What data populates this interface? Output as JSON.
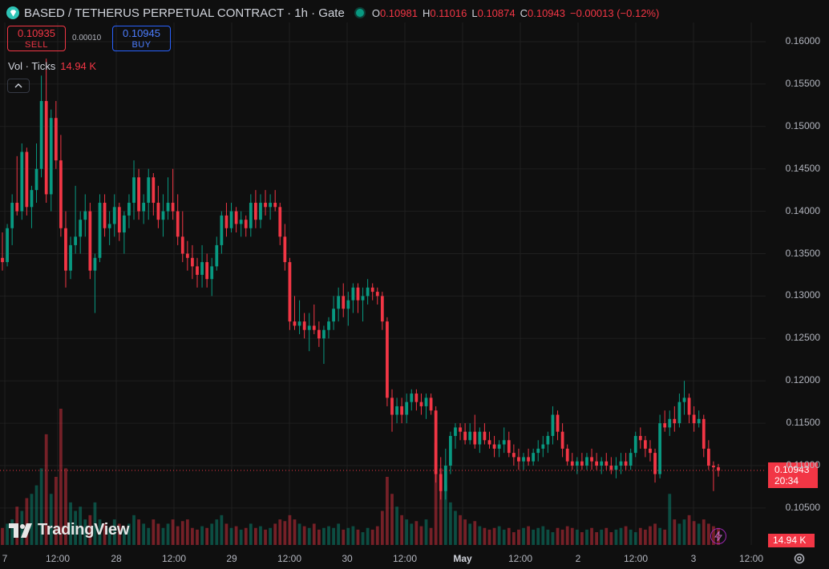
{
  "header": {
    "title": "BASED / TETHERUS PERPETUAL CONTRACT · 1h · Gate",
    "o_label": "O",
    "o": "0.10981",
    "h_label": "H",
    "h": "0.11016",
    "l_label": "L",
    "l": "0.10874",
    "c_label": "C",
    "c": "0.10943",
    "change": "−0.00013 (−0.12%)"
  },
  "trade": {
    "sell_price": "0.10935",
    "sell_label": "SELL",
    "spread": "0.00010",
    "buy_price": "0.10945",
    "buy_label": "BUY"
  },
  "volume_legend": {
    "label": "Vol · Ticks",
    "value": "14.94 K"
  },
  "brand": "TradingView",
  "last_price": {
    "price": "0.10943",
    "countdown": "20:34"
  },
  "last_volume": "14.94 K",
  "colors": {
    "up": "#089981",
    "down": "#f23645",
    "background": "#0f0f0f",
    "grid": "#1f1f1f"
  },
  "icons": {
    "logo": "diamond-icon",
    "collapse": "chevron-up-icon",
    "replay": "lightning-icon",
    "settings": "gear-icon"
  },
  "chart_data": {
    "type": "candlestick",
    "yticks": [
      "0.16000",
      "0.15500",
      "0.15000",
      "0.14500",
      "0.14000",
      "0.13500",
      "0.13000",
      "0.12500",
      "0.12000",
      "0.11500",
      "0.11000",
      "0.10500"
    ],
    "ylim": [
      0.1025,
      0.1625
    ],
    "xticks": [
      "7",
      "12:00",
      "28",
      "12:00",
      "29",
      "12:00",
      "30",
      "12:00",
      "May",
      "12:00",
      "2",
      "12:00",
      "3",
      "12:00"
    ],
    "xtick_bold": [
      "May"
    ],
    "ohlc": [
      [
        0.1345,
        0.1375,
        0.133,
        0.134
      ],
      [
        0.134,
        0.1385,
        0.1335,
        0.138
      ],
      [
        0.138,
        0.142,
        0.136,
        0.141
      ],
      [
        0.141,
        0.1465,
        0.1395,
        0.14
      ],
      [
        0.14,
        0.148,
        0.139,
        0.147
      ],
      [
        0.147,
        0.1475,
        0.1395,
        0.1405
      ],
      [
        0.1405,
        0.143,
        0.138,
        0.1425
      ],
      [
        0.1425,
        0.148,
        0.141,
        0.145
      ],
      [
        0.145,
        0.156,
        0.144,
        0.153
      ],
      [
        0.153,
        0.158,
        0.141,
        0.142
      ],
      [
        0.142,
        0.152,
        0.14,
        0.151
      ],
      [
        0.151,
        0.153,
        0.145,
        0.146
      ],
      [
        0.146,
        0.149,
        0.137,
        0.138
      ],
      [
        0.138,
        0.14,
        0.131,
        0.133
      ],
      [
        0.133,
        0.137,
        0.132,
        0.136
      ],
      [
        0.136,
        0.143,
        0.135,
        0.137
      ],
      [
        0.137,
        0.14,
        0.135,
        0.139
      ],
      [
        0.139,
        0.142,
        0.137,
        0.14
      ],
      [
        0.14,
        0.141,
        0.132,
        0.133
      ],
      [
        0.133,
        0.135,
        0.128,
        0.1345
      ],
      [
        0.1345,
        0.142,
        0.134,
        0.141
      ],
      [
        0.141,
        0.142,
        0.137,
        0.138
      ],
      [
        0.138,
        0.14,
        0.136,
        0.1385
      ],
      [
        0.1385,
        0.142,
        0.137,
        0.1405
      ],
      [
        0.1405,
        0.141,
        0.1365,
        0.1375
      ],
      [
        0.1375,
        0.14,
        0.135,
        0.1395
      ],
      [
        0.1395,
        0.142,
        0.138,
        0.141
      ],
      [
        0.141,
        0.146,
        0.139,
        0.144
      ],
      [
        0.144,
        0.145,
        0.139,
        0.14
      ],
      [
        0.14,
        0.142,
        0.1385,
        0.141
      ],
      [
        0.141,
        0.145,
        0.139,
        0.144
      ],
      [
        0.144,
        0.1445,
        0.1395,
        0.141
      ],
      [
        0.141,
        0.143,
        0.138,
        0.139
      ],
      [
        0.139,
        0.142,
        0.137,
        0.14
      ],
      [
        0.14,
        0.144,
        0.139,
        0.141
      ],
      [
        0.141,
        0.145,
        0.139,
        0.14
      ],
      [
        0.14,
        0.142,
        0.136,
        0.137
      ],
      [
        0.137,
        0.14,
        0.134,
        0.135
      ],
      [
        0.135,
        0.1365,
        0.133,
        0.1345
      ],
      [
        0.1345,
        0.136,
        0.132,
        0.1335
      ],
      [
        0.1335,
        0.1345,
        0.131,
        0.1325
      ],
      [
        0.1325,
        0.136,
        0.131,
        0.134
      ],
      [
        0.134,
        0.135,
        0.131,
        0.132
      ],
      [
        0.132,
        0.1345,
        0.13,
        0.1335
      ],
      [
        0.1335,
        0.137,
        0.133,
        0.136
      ],
      [
        0.136,
        0.14,
        0.135,
        0.1395
      ],
      [
        0.1395,
        0.141,
        0.137,
        0.138
      ],
      [
        0.138,
        0.141,
        0.1375,
        0.14
      ],
      [
        0.14,
        0.1405,
        0.1375,
        0.1385
      ],
      [
        0.1385,
        0.14,
        0.137,
        0.139
      ],
      [
        0.139,
        0.1395,
        0.137,
        0.138
      ],
      [
        0.138,
        0.142,
        0.137,
        0.141
      ],
      [
        0.141,
        0.1425,
        0.138,
        0.139
      ],
      [
        0.139,
        0.142,
        0.138,
        0.141
      ],
      [
        0.141,
        0.1425,
        0.1395,
        0.1405
      ],
      [
        0.1405,
        0.142,
        0.139,
        0.141
      ],
      [
        0.141,
        0.1425,
        0.14,
        0.1405
      ],
      [
        0.1405,
        0.141,
        0.136,
        0.137
      ],
      [
        0.137,
        0.1385,
        0.133,
        0.134
      ],
      [
        0.134,
        0.1345,
        0.126,
        0.127
      ],
      [
        0.127,
        0.13,
        0.126,
        0.1265
      ],
      [
        0.1265,
        0.1295,
        0.1255,
        0.127
      ],
      [
        0.127,
        0.128,
        0.125,
        0.126
      ],
      [
        0.126,
        0.128,
        0.1235,
        0.1265
      ],
      [
        0.1265,
        0.129,
        0.1255,
        0.126
      ],
      [
        0.126,
        0.127,
        0.124,
        0.125
      ],
      [
        0.125,
        0.1265,
        0.122,
        0.126
      ],
      [
        0.126,
        0.1275,
        0.125,
        0.127
      ],
      [
        0.127,
        0.13,
        0.126,
        0.1285
      ],
      [
        0.1285,
        0.131,
        0.127,
        0.13
      ],
      [
        0.13,
        0.1315,
        0.1275,
        0.1285
      ],
      [
        0.1285,
        0.1305,
        0.1265,
        0.1295
      ],
      [
        0.1295,
        0.1315,
        0.128,
        0.131
      ],
      [
        0.131,
        0.1315,
        0.128,
        0.1295
      ],
      [
        0.1295,
        0.131,
        0.127,
        0.13
      ],
      [
        0.13,
        0.132,
        0.129,
        0.131
      ],
      [
        0.131,
        0.1315,
        0.1295,
        0.1305
      ],
      [
        0.1305,
        0.131,
        0.129,
        0.13
      ],
      [
        0.13,
        0.1305,
        0.126,
        0.127
      ],
      [
        0.127,
        0.1275,
        0.117,
        0.118
      ],
      [
        0.118,
        0.119,
        0.114,
        0.116
      ],
      [
        0.116,
        0.118,
        0.115,
        0.117
      ],
      [
        0.117,
        0.118,
        0.115,
        0.116
      ],
      [
        0.116,
        0.1185,
        0.115,
        0.1175
      ],
      [
        0.1175,
        0.119,
        0.1165,
        0.1185
      ],
      [
        0.1185,
        0.119,
        0.1165,
        0.1175
      ],
      [
        0.1175,
        0.1185,
        0.116,
        0.117
      ],
      [
        0.117,
        0.1185,
        0.1155,
        0.118
      ],
      [
        0.118,
        0.1185,
        0.116,
        0.1165
      ],
      [
        0.1165,
        0.117,
        0.108,
        0.109
      ],
      [
        0.109,
        0.111,
        0.106,
        0.107
      ],
      [
        0.107,
        0.112,
        0.106,
        0.11
      ],
      [
        0.11,
        0.114,
        0.109,
        0.1135
      ],
      [
        0.1135,
        0.115,
        0.112,
        0.1145
      ],
      [
        0.1145,
        0.115,
        0.113,
        0.114
      ],
      [
        0.114,
        0.115,
        0.1125,
        0.113
      ],
      [
        0.113,
        0.115,
        0.1125,
        0.114
      ],
      [
        0.114,
        0.116,
        0.112,
        0.1125
      ],
      [
        0.1125,
        0.1145,
        0.1115,
        0.114
      ],
      [
        0.114,
        0.115,
        0.1125,
        0.113
      ],
      [
        0.113,
        0.114,
        0.112,
        0.1125
      ],
      [
        0.1125,
        0.1135,
        0.111,
        0.112
      ],
      [
        0.112,
        0.113,
        0.111,
        0.1125
      ],
      [
        0.1125,
        0.1145,
        0.1115,
        0.113
      ],
      [
        0.113,
        0.114,
        0.111,
        0.1115
      ],
      [
        0.1115,
        0.1125,
        0.11,
        0.111
      ],
      [
        0.111,
        0.112,
        0.1095,
        0.1105
      ],
      [
        0.1105,
        0.1115,
        0.1095,
        0.111
      ],
      [
        0.111,
        0.112,
        0.11,
        0.1105
      ],
      [
        0.1105,
        0.112,
        0.11,
        0.1115
      ],
      [
        0.1115,
        0.113,
        0.1105,
        0.112
      ],
      [
        0.112,
        0.1135,
        0.111,
        0.1125
      ],
      [
        0.1125,
        0.114,
        0.1115,
        0.1135
      ],
      [
        0.1135,
        0.117,
        0.1125,
        0.116
      ],
      [
        0.116,
        0.1165,
        0.113,
        0.114
      ],
      [
        0.114,
        0.115,
        0.111,
        0.112
      ],
      [
        0.112,
        0.1125,
        0.11,
        0.1105
      ],
      [
        0.1105,
        0.1115,
        0.1095,
        0.11
      ],
      [
        0.11,
        0.111,
        0.109,
        0.1105
      ],
      [
        0.1105,
        0.1115,
        0.1095,
        0.11
      ],
      [
        0.11,
        0.1115,
        0.1095,
        0.111
      ],
      [
        0.111,
        0.112,
        0.1095,
        0.1105
      ],
      [
        0.1105,
        0.1115,
        0.1095,
        0.11
      ],
      [
        0.11,
        0.111,
        0.109,
        0.1105
      ],
      [
        0.1105,
        0.1115,
        0.1095,
        0.11
      ],
      [
        0.11,
        0.111,
        0.109,
        0.1095
      ],
      [
        0.1095,
        0.111,
        0.1085,
        0.11
      ],
      [
        0.11,
        0.1115,
        0.109,
        0.1105
      ],
      [
        0.1105,
        0.1115,
        0.1095,
        0.11
      ],
      [
        0.11,
        0.112,
        0.1095,
        0.1115
      ],
      [
        0.1115,
        0.114,
        0.111,
        0.1135
      ],
      [
        0.1135,
        0.1145,
        0.112,
        0.113
      ],
      [
        0.113,
        0.1135,
        0.111,
        0.112
      ],
      [
        0.112,
        0.113,
        0.1105,
        0.1115
      ],
      [
        0.1115,
        0.112,
        0.108,
        0.109
      ],
      [
        0.109,
        0.116,
        0.1085,
        0.115
      ],
      [
        0.115,
        0.1165,
        0.114,
        0.1145
      ],
      [
        0.1145,
        0.1165,
        0.1135,
        0.1155
      ],
      [
        0.1155,
        0.117,
        0.114,
        0.115
      ],
      [
        0.115,
        0.1185,
        0.1145,
        0.1175
      ],
      [
        0.1175,
        0.12,
        0.116,
        0.118
      ],
      [
        0.118,
        0.1185,
        0.115,
        0.116
      ],
      [
        0.116,
        0.117,
        0.114,
        0.115
      ],
      [
        0.115,
        0.1165,
        0.1145,
        0.1155
      ],
      [
        0.1155,
        0.116,
        0.111,
        0.112
      ],
      [
        0.112,
        0.113,
        0.1095,
        0.11
      ],
      [
        0.11,
        0.1105,
        0.107,
        0.1098
      ],
      [
        0.1098,
        0.1102,
        0.1087,
        0.1094
      ]
    ],
    "volume": [
      20,
      25,
      30,
      45,
      40,
      55,
      60,
      70,
      90,
      130,
      60,
      80,
      160,
      90,
      50,
      40,
      45,
      30,
      35,
      50,
      30,
      25,
      20,
      30,
      25,
      20,
      25,
      35,
      30,
      25,
      20,
      30,
      25,
      20,
      25,
      30,
      22,
      28,
      30,
      20,
      18,
      22,
      20,
      25,
      30,
      35,
      25,
      20,
      22,
      18,
      20,
      25,
      20,
      22,
      18,
      20,
      25,
      30,
      28,
      35,
      30,
      25,
      22,
      20,
      25,
      18,
      20,
      22,
      20,
      25,
      18,
      20,
      22,
      18,
      15,
      20,
      18,
      22,
      40,
      80,
      60,
      45,
      35,
      30,
      25,
      28,
      22,
      30,
      20,
      120,
      90,
      70,
      50,
      40,
      35,
      30,
      25,
      28,
      22,
      20,
      18,
      20,
      22,
      18,
      20,
      15,
      18,
      20,
      22,
      18,
      20,
      22,
      18,
      15,
      20,
      18,
      22,
      20,
      18,
      15,
      18,
      20,
      15,
      18,
      20,
      15,
      18,
      20,
      22,
      18,
      15,
      20,
      18,
      22,
      25,
      20,
      18,
      60,
      30,
      25,
      30,
      35,
      28,
      25,
      30,
      25,
      22,
      20,
      18,
      20
    ]
  }
}
